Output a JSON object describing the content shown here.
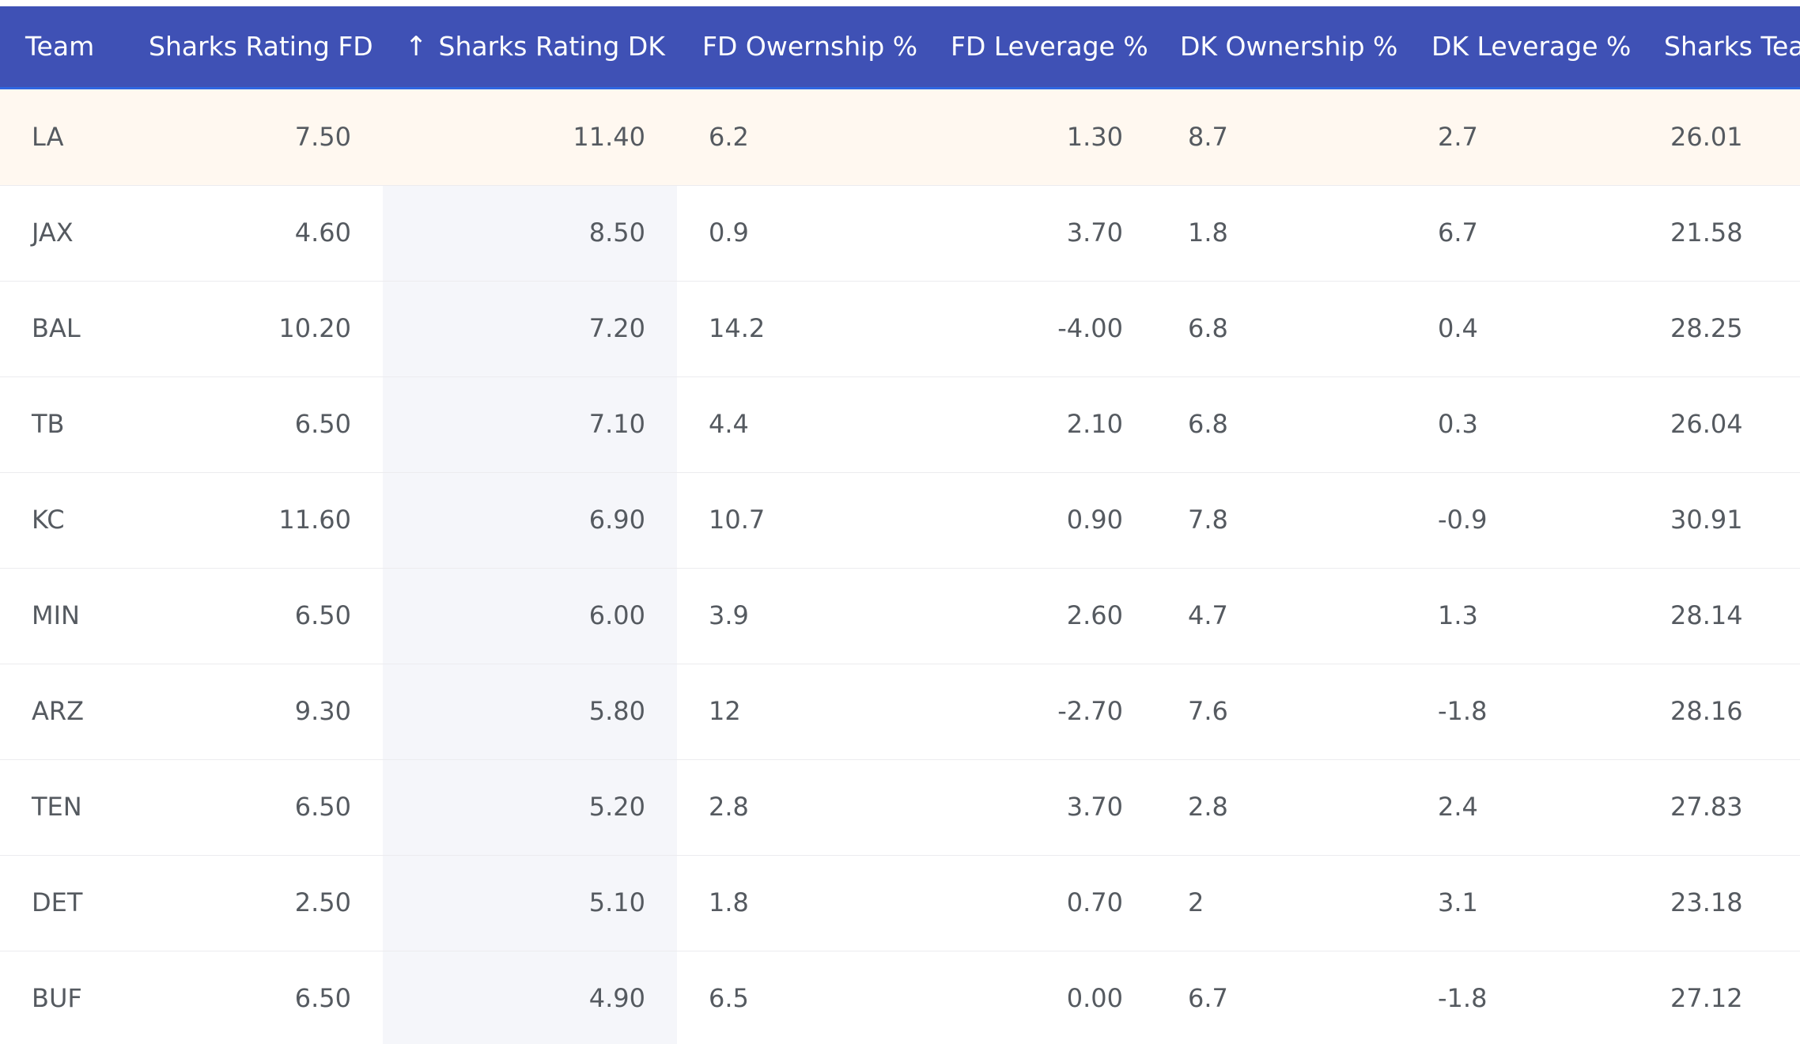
{
  "table": {
    "columns": [
      {
        "label": "Team"
      },
      {
        "label": "Sharks Rating FD"
      },
      {
        "label": "Sharks Rating DK",
        "sort_icon": "↑"
      },
      {
        "label": "FD Owernship %"
      },
      {
        "label": "FD Leverage %"
      },
      {
        "label": "DK Ownership %"
      },
      {
        "label": "DK Leverage %"
      },
      {
        "label": "Sharks Tea"
      }
    ],
    "rows": [
      {
        "team": "LA",
        "fd": "7.50",
        "dk": "11.40",
        "fd_own": "6.2",
        "fd_lev": "1.30",
        "dk_own": "8.7",
        "dk_lev": "2.7",
        "sharks": "26.01"
      },
      {
        "team": "JAX",
        "fd": "4.60",
        "dk": "8.50",
        "fd_own": "0.9",
        "fd_lev": "3.70",
        "dk_own": "1.8",
        "dk_lev": "6.7",
        "sharks": "21.58"
      },
      {
        "team": "BAL",
        "fd": "10.20",
        "dk": "7.20",
        "fd_own": "14.2",
        "fd_lev": "-4.00",
        "dk_own": "6.8",
        "dk_lev": "0.4",
        "sharks": "28.25"
      },
      {
        "team": "TB",
        "fd": "6.50",
        "dk": "7.10",
        "fd_own": "4.4",
        "fd_lev": "2.10",
        "dk_own": "6.8",
        "dk_lev": "0.3",
        "sharks": "26.04"
      },
      {
        "team": "KC",
        "fd": "11.60",
        "dk": "6.90",
        "fd_own": "10.7",
        "fd_lev": "0.90",
        "dk_own": "7.8",
        "dk_lev": "-0.9",
        "sharks": "30.91"
      },
      {
        "team": "MIN",
        "fd": "6.50",
        "dk": "6.00",
        "fd_own": "3.9",
        "fd_lev": "2.60",
        "dk_own": "4.7",
        "dk_lev": "1.3",
        "sharks": "28.14"
      },
      {
        "team": "ARZ",
        "fd": "9.30",
        "dk": "5.80",
        "fd_own": "12",
        "fd_lev": "-2.70",
        "dk_own": "7.6",
        "dk_lev": "-1.8",
        "sharks": "28.16"
      },
      {
        "team": "TEN",
        "fd": "6.50",
        "dk": "5.20",
        "fd_own": "2.8",
        "fd_lev": "3.70",
        "dk_own": "2.8",
        "dk_lev": "2.4",
        "sharks": "27.83"
      },
      {
        "team": "DET",
        "fd": "2.50",
        "dk": "5.10",
        "fd_own": "1.8",
        "fd_lev": "0.70",
        "dk_own": "2",
        "dk_lev": "3.1",
        "sharks": "23.18"
      },
      {
        "team": "BUF",
        "fd": "6.50",
        "dk": "4.90",
        "fd_own": "6.5",
        "fd_lev": "0.00",
        "dk_own": "6.7",
        "dk_lev": "-1.8",
        "sharks": "27.12"
      }
    ]
  },
  "colors": {
    "header_bg": "#3f51b5",
    "header_text": "#ffffff",
    "highlight_row": "#fff8f0",
    "sorted_column_bg": "#f5f6fa",
    "cell_text": "#555a60"
  },
  "icons": {
    "sort": "arrow-up-icon"
  }
}
